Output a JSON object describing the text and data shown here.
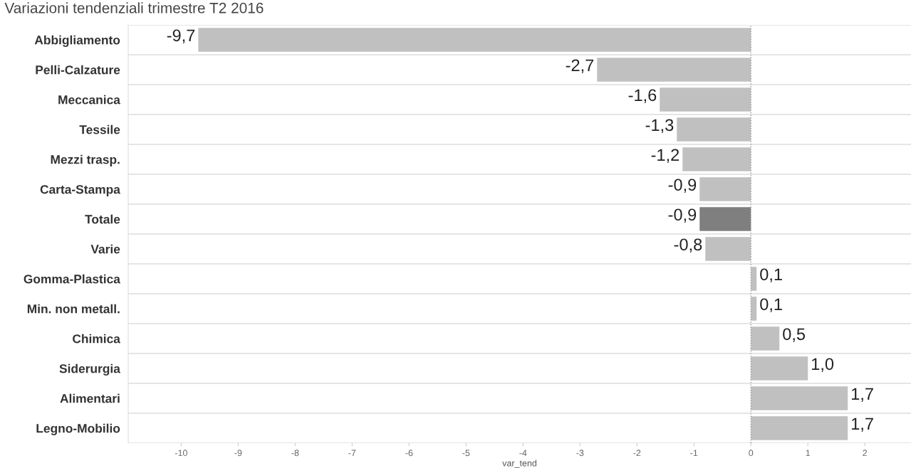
{
  "chart_data": {
    "type": "bar",
    "orientation": "horizontal",
    "title": "Variazioni tendenziali trimestre T2 2016",
    "xlabel": "var_tend",
    "categories": [
      "Abbigliamento",
      "Pelli-Calzature",
      "Meccanica",
      "Tessile",
      "Mezzi trasp.",
      "Carta-Stampa",
      "Totale",
      "Varie",
      "Gomma-Plastica",
      "Min. non metall.",
      "Chimica",
      "Siderurgia",
      "Alimentari",
      "Legno-Mobilio"
    ],
    "values": [
      -9.7,
      -2.7,
      -1.6,
      -1.3,
      -1.2,
      -0.9,
      -0.9,
      -0.8,
      0.1,
      0.1,
      0.5,
      1.0,
      1.7,
      1.7
    ],
    "value_labels": [
      "-9,7",
      "-2,7",
      "-1,6",
      "-1,3",
      "-1,2",
      "-0,9",
      "-0,9",
      "-0,8",
      "0,1",
      "0,1",
      "0,5",
      "1,0",
      "1,7",
      "1,7"
    ],
    "colors": [
      "#c0c0c0",
      "#c0c0c0",
      "#c0c0c0",
      "#c0c0c0",
      "#c0c0c0",
      "#c0c0c0",
      "#7f7f7f",
      "#c0c0c0",
      "#c0c0c0",
      "#c0c0c0",
      "#c0c0c0",
      "#c0c0c0",
      "#c0c0c0",
      "#c0c0c0"
    ],
    "xlim": [
      -10.93,
      2.81
    ],
    "xticks": [
      -10,
      -9,
      -8,
      -7,
      -6,
      -5,
      -4,
      -3,
      -2,
      -1,
      0,
      1,
      2
    ],
    "grid": "y",
    "ref_lines": [
      {
        "axis": "x",
        "value": 0,
        "color": "#999999",
        "line_style": "dotted"
      }
    ]
  }
}
